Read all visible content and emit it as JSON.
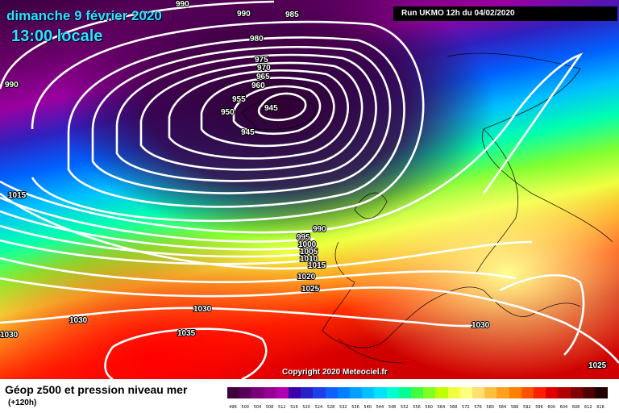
{
  "header": {
    "date_line": "dimanche 9 février 2020",
    "time_line": "13:00 locale",
    "run_info": "Run UKMO 12h du 04/02/2020"
  },
  "copyright": "Copyright 2020 Meteociel.fr",
  "footer": {
    "title": "Géop z500 et pression niveau mer",
    "subtitle": "(+120h)"
  },
  "scale": {
    "labels": [
      "496",
      "500",
      "504",
      "508",
      "512",
      "516",
      "520",
      "524",
      "528",
      "532",
      "536",
      "540",
      "544",
      "548",
      "552",
      "556",
      "560",
      "564",
      "568",
      "572",
      "576",
      "580",
      "584",
      "588",
      "592",
      "596",
      "600",
      "604",
      "608",
      "612",
      "616"
    ],
    "colors": [
      "#400040",
      "#5a005a",
      "#7a007a",
      "#960096",
      "#b000b0",
      "#3c00aa",
      "#2a20c8",
      "#1e40e6",
      "#1060ff",
      "#0080ff",
      "#00a0ff",
      "#00c0ff",
      "#00e0ff",
      "#00ffd0",
      "#00ff90",
      "#40ff40",
      "#80ff20",
      "#c0ff00",
      "#f0ff40",
      "#ffff80",
      "#ffe070",
      "#ffc040",
      "#ffa020",
      "#ff8000",
      "#ff5000",
      "#ff2000",
      "#e00000",
      "#b00000",
      "#800000",
      "#500000",
      "#200000"
    ]
  },
  "map": {
    "isobar_labels": [
      {
        "text": "990"
      },
      {
        "text": "990"
      },
      {
        "text": "985"
      },
      {
        "text": "980"
      },
      {
        "text": "975"
      },
      {
        "text": "970"
      },
      {
        "text": "965"
      },
      {
        "text": "960"
      },
      {
        "text": "955"
      },
      {
        "text": "950"
      },
      {
        "text": "945"
      },
      {
        "text": "945"
      },
      {
        "text": "990"
      },
      {
        "text": "1015"
      },
      {
        "text": "990"
      },
      {
        "text": "995"
      },
      {
        "text": "1000"
      },
      {
        "text": "1005"
      },
      {
        "text": "1010"
      },
      {
        "text": "1015"
      },
      {
        "text": "1020"
      },
      {
        "text": "1025"
      },
      {
        "text": "1030"
      },
      {
        "text": "1030"
      },
      {
        "text": "1030"
      },
      {
        "text": "1035"
      },
      {
        "text": "1030"
      },
      {
        "text": "1025"
      }
    ]
  }
}
